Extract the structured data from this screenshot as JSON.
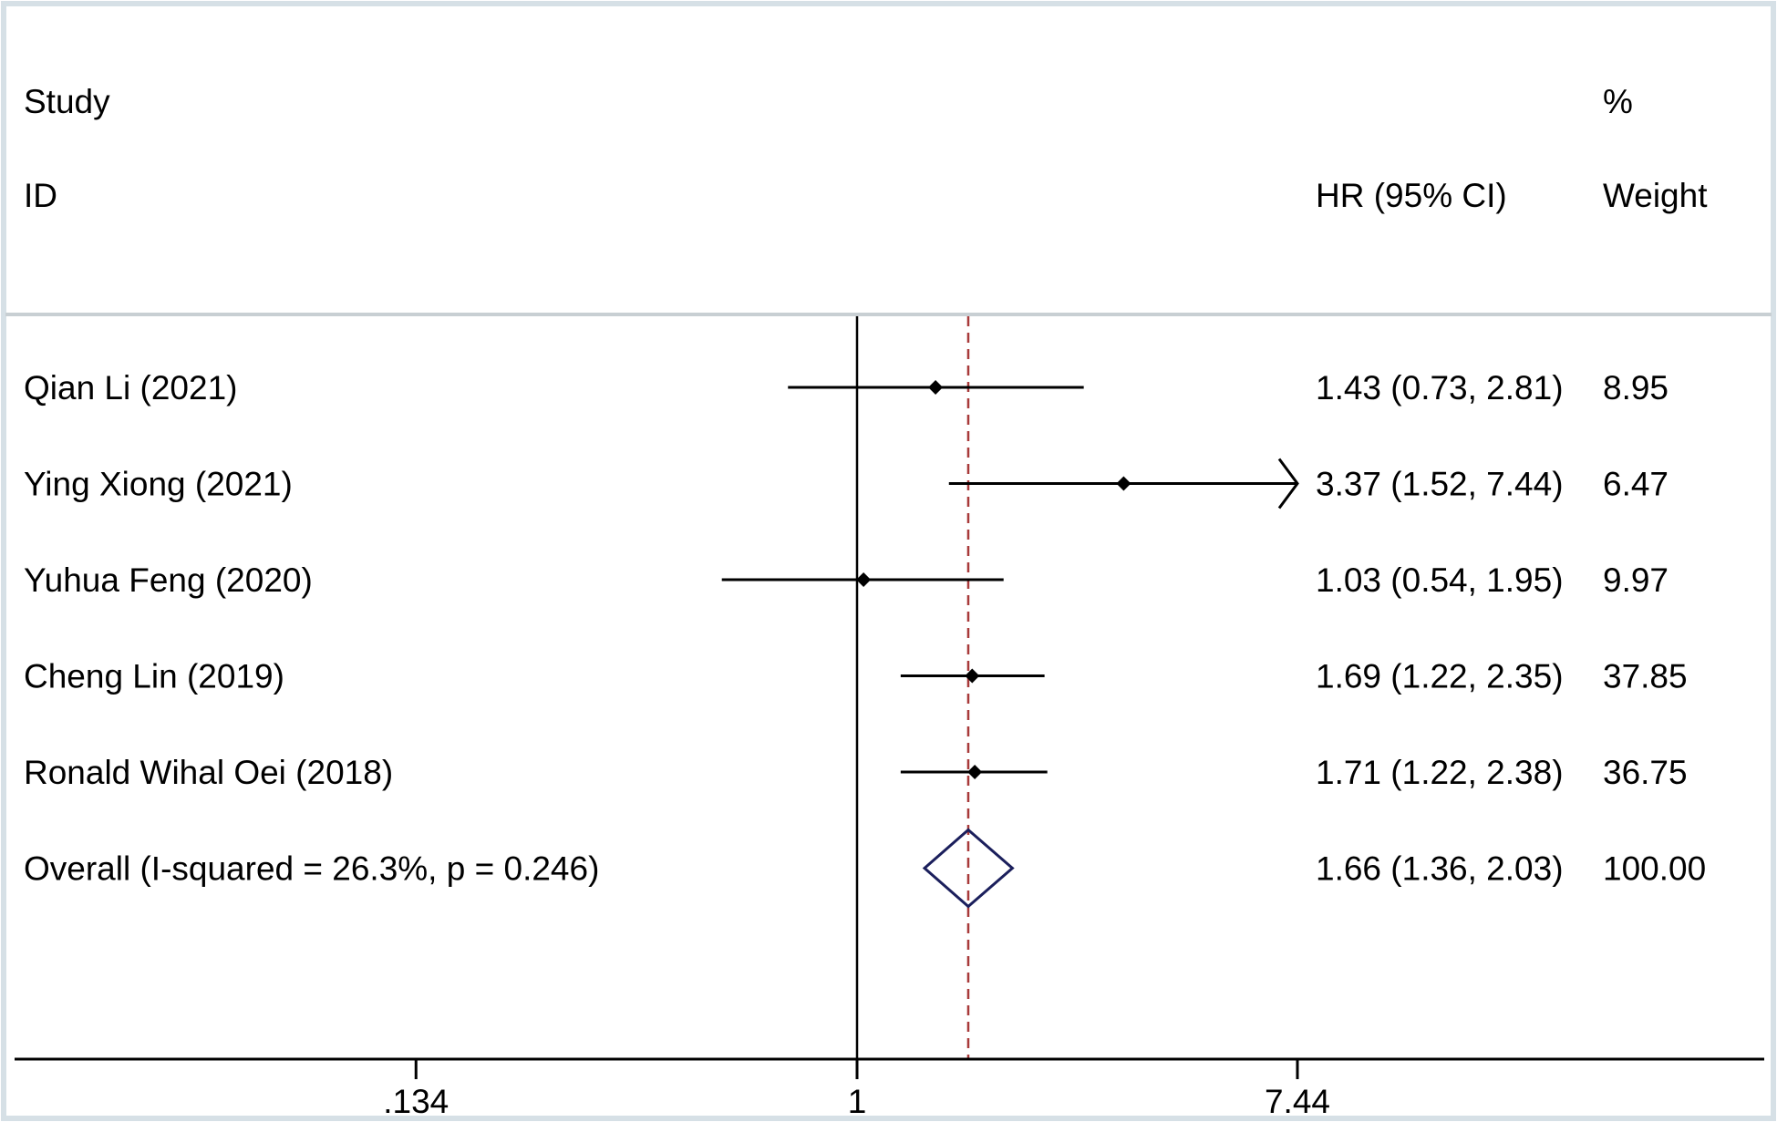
{
  "chart_data": {
    "type": "forest",
    "header": {
      "study_line1": "Study",
      "study_line2": "ID",
      "estimate": "HR (95% CI)",
      "weight_line1": "%",
      "weight_line2": "Weight"
    },
    "scale": "log",
    "xlim": [
      0.134,
      10.5
    ],
    "ticks": [
      {
        "value": 0.134,
        "label": ".134"
      },
      {
        "value": 1,
        "label": "1"
      },
      {
        "value": 7.44,
        "label": "7.44"
      }
    ],
    "null_value": 1,
    "pooled_value": 1.66,
    "studies": [
      {
        "name": "Qian Li (2021)",
        "hr": 1.43,
        "lower": 0.73,
        "upper": 2.81,
        "text": "1.43 (0.73, 2.81)",
        "weight": "8.95",
        "arrow": false
      },
      {
        "name": "Ying Xiong (2021)",
        "hr": 3.37,
        "lower": 1.52,
        "upper": 7.44,
        "text": "3.37 (1.52, 7.44)",
        "weight": "6.47",
        "arrow": true
      },
      {
        "name": "Yuhua Feng (2020)",
        "hr": 1.03,
        "lower": 0.54,
        "upper": 1.95,
        "text": "1.03 (0.54, 1.95)",
        "weight": "9.97",
        "arrow": false
      },
      {
        "name": "Cheng Lin (2019)",
        "hr": 1.69,
        "lower": 1.22,
        "upper": 2.35,
        "text": "1.69 (1.22, 2.35)",
        "weight": "37.85",
        "arrow": false
      },
      {
        "name": "Ronald Wihal Oei (2018)",
        "hr": 1.71,
        "lower": 1.22,
        "upper": 2.38,
        "text": "1.71 (1.22, 2.38)",
        "weight": "36.75",
        "arrow": false
      }
    ],
    "overall": {
      "name": "Overall  (I-squared = 26.3%, p = 0.246)",
      "hr": 1.66,
      "lower": 1.36,
      "upper": 2.03,
      "text": "1.66 (1.36, 2.03)",
      "weight": "100.00"
    },
    "colors": {
      "frame": "#d6e0e6",
      "ink": "#000000",
      "diamond": "#1b1f5c",
      "pooled_line": "#a83a3a"
    }
  }
}
